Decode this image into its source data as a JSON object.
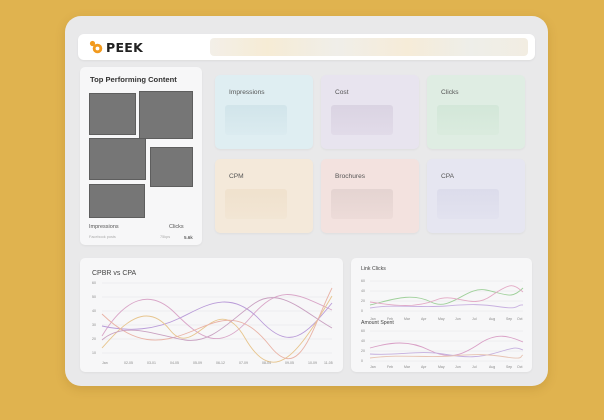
{
  "app": {
    "brand": "PEEK",
    "brand_accent": "#f29a1e"
  },
  "top_performing": {
    "title": "Top Performing Content",
    "col1_header": "Impressions",
    "col2_header": "Clicks",
    "row_sub1": "Facebook posts",
    "row_sub2": "75kps",
    "row_value": "5.6k"
  },
  "metrics": [
    {
      "label": "Impressions",
      "color": "#dfeef2"
    },
    {
      "label": "Cost",
      "color": "#e8e4ef"
    },
    {
      "label": "Clicks",
      "color": "#dfede3"
    },
    {
      "label": "CPM",
      "color": "#f4e9da"
    },
    {
      "label": "Brochures",
      "color": "#f3e2df"
    },
    {
      "label": "CPA",
      "color": "#e6e6f1"
    }
  ],
  "main_chart": {
    "title": "CPBR vs CPA",
    "x_ticks": [
      "Jan",
      "02-05",
      "03-01",
      "04-05",
      "05-09",
      "06-12",
      "07-09",
      "08-04",
      "09-05",
      "10-09",
      "11-05"
    ],
    "y_ticks": [
      "60",
      "50",
      "40",
      "30",
      "20",
      "10",
      "0"
    ]
  },
  "chart_link_clicks": {
    "title": "Link Clicks",
    "x_ticks": [
      "Jan",
      "Feb",
      "Mar",
      "Apr",
      "May",
      "Jun",
      "Jul",
      "Aug",
      "Sep",
      "Oct"
    ],
    "y_ticks": [
      "60",
      "40",
      "20",
      "0"
    ]
  },
  "chart_amount_spent": {
    "title": "Amount Spent",
    "x_ticks": [
      "Jan",
      "Feb",
      "Mar",
      "Apr",
      "May",
      "Jun",
      "Jul",
      "Aug",
      "Sep",
      "Oct"
    ],
    "y_ticks": [
      "60",
      "40",
      "20",
      "0"
    ]
  }
}
